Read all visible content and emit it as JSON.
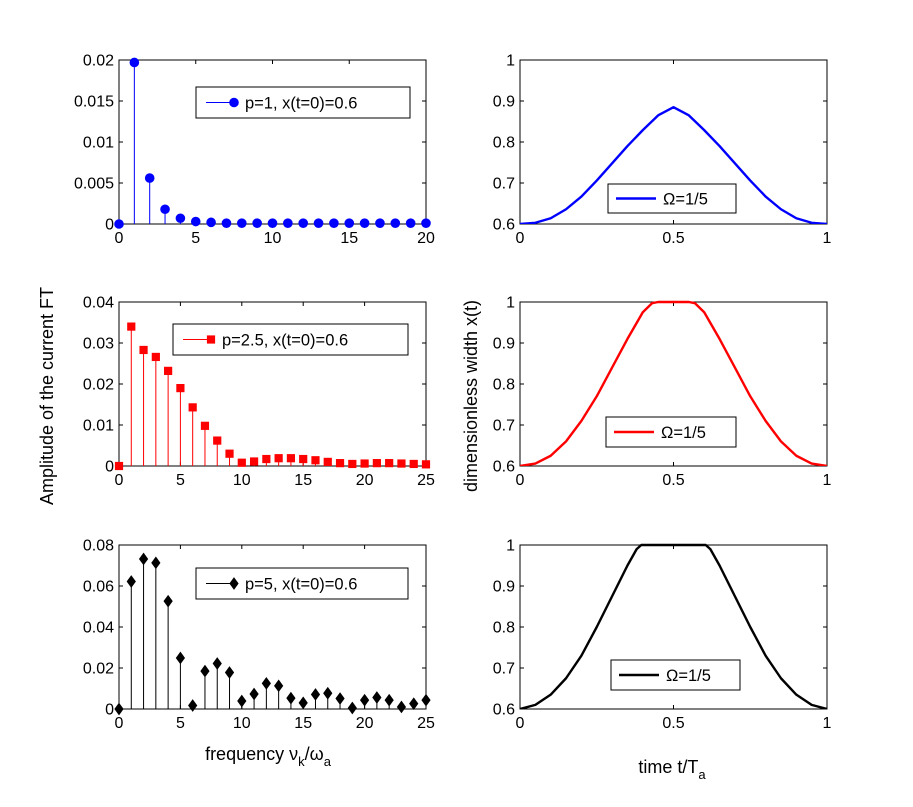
{
  "figure": {
    "left_ylabel": "Amplitude of the current FT",
    "right_ylabel": "dimensionless width x(t)",
    "left_xlabel_main": "frequency ν",
    "left_xlabel_sub1": "k",
    "left_xlabel_mid": "/ω",
    "left_xlabel_sub2": "a",
    "right_xlabel_main": "time t/T",
    "right_xlabel_sub": "a"
  },
  "colors": {
    "blue": "#0000ff",
    "red": "#ff0000",
    "black": "#000000"
  },
  "chart_data": [
    {
      "id": "stem1",
      "type": "scatter",
      "style": "stem",
      "marker": "circle",
      "color": "#0000ff",
      "legend": "p=1, x(t=0)=0.6",
      "xlim": [
        0,
        20
      ],
      "ylim": [
        0,
        0.02
      ],
      "xticks": [
        "0",
        "5",
        "10",
        "15",
        "20"
      ],
      "xtick_values": [
        0,
        5,
        10,
        15,
        20
      ],
      "yticks": [
        "0",
        "0.005",
        "0.01",
        "0.015",
        "0.02"
      ],
      "ytick_values": [
        0,
        0.005,
        0.01,
        0.015,
        0.02
      ],
      "x": [
        0,
        1,
        2,
        3,
        4,
        5,
        6,
        7,
        8,
        9,
        10,
        11,
        12,
        13,
        14,
        15,
        16,
        17,
        18,
        19,
        20
      ],
      "y": [
        0,
        0.0197,
        0.0056,
        0.0018,
        0.0007,
        0.0003,
        0.0002,
        0.0001,
        0.0001,
        0.0001,
        0.0001,
        0.0001,
        0.0001,
        0.0001,
        0.0001,
        0.0001,
        0.0001,
        0.0001,
        0.0001,
        0.0001,
        0.0001
      ]
    },
    {
      "id": "stem2",
      "type": "scatter",
      "style": "stem",
      "marker": "square",
      "color": "#ff0000",
      "legend": "p=2.5, x(t=0)=0.6",
      "xlim": [
        0,
        25
      ],
      "ylim": [
        0,
        0.04
      ],
      "xticks": [
        "0",
        "5",
        "10",
        "15",
        "20",
        "25"
      ],
      "xtick_values": [
        0,
        5,
        10,
        15,
        20,
        25
      ],
      "yticks": [
        "0",
        "0.01",
        "0.02",
        "0.03",
        "0.04"
      ],
      "ytick_values": [
        0,
        0.01,
        0.02,
        0.03,
        0.04
      ],
      "x": [
        0,
        1,
        2,
        3,
        4,
        5,
        6,
        7,
        8,
        9,
        10,
        11,
        12,
        13,
        14,
        15,
        16,
        17,
        18,
        19,
        20,
        21,
        22,
        23,
        24,
        25
      ],
      "y": [
        0,
        0.034,
        0.0283,
        0.0266,
        0.0232,
        0.019,
        0.0143,
        0.0098,
        0.0062,
        0.003,
        0.0008,
        0.0011,
        0.0017,
        0.0019,
        0.0019,
        0.0017,
        0.0014,
        0.001,
        0.0007,
        0.0005,
        0.0006,
        0.0007,
        0.0007,
        0.0006,
        0.0005,
        0.0004
      ]
    },
    {
      "id": "stem3",
      "type": "scatter",
      "style": "stem",
      "marker": "diamond",
      "color": "#000000",
      "legend": "p=5, x(t=0)=0.6",
      "xlim": [
        0,
        25
      ],
      "ylim": [
        0,
        0.08
      ],
      "xticks": [
        "0",
        "5",
        "10",
        "15",
        "20",
        "25"
      ],
      "xtick_values": [
        0,
        5,
        10,
        15,
        20,
        25
      ],
      "yticks": [
        "0",
        "0.02",
        "0.04",
        "0.06",
        "0.08"
      ],
      "ytick_values": [
        0,
        0.02,
        0.04,
        0.06,
        0.08
      ],
      "x": [
        0,
        1,
        2,
        3,
        4,
        5,
        6,
        7,
        8,
        9,
        10,
        11,
        12,
        13,
        14,
        15,
        16,
        17,
        18,
        19,
        20,
        21,
        22,
        23,
        24,
        25
      ],
      "y": [
        0,
        0.0622,
        0.0732,
        0.0713,
        0.0526,
        0.0249,
        0.0017,
        0.0185,
        0.0222,
        0.0178,
        0.0039,
        0.0073,
        0.0125,
        0.0113,
        0.0053,
        0.003,
        0.0071,
        0.0077,
        0.0051,
        0.0005,
        0.0043,
        0.0056,
        0.0043,
        0.001,
        0.0026,
        0.0043
      ]
    },
    {
      "id": "line1",
      "type": "line",
      "color": "#0000ff",
      "legend": "Ω=1/5",
      "xlim": [
        0,
        1
      ],
      "ylim": [
        0.6,
        1
      ],
      "xticks": [
        "0",
        "0.5",
        "1"
      ],
      "xtick_values": [
        0,
        0.5,
        1
      ],
      "yticks": [
        "0.6",
        "0.7",
        "0.8",
        "0.9",
        "1"
      ],
      "ytick_values": [
        0.6,
        0.7,
        0.8,
        0.9,
        1
      ],
      "x": [
        0,
        0.05,
        0.1,
        0.15,
        0.2,
        0.25,
        0.3,
        0.35,
        0.4,
        0.45,
        0.5,
        0.55,
        0.6,
        0.65,
        0.7,
        0.75,
        0.8,
        0.85,
        0.9,
        0.95,
        1
      ],
      "y": [
        0.6,
        0.603,
        0.614,
        0.636,
        0.667,
        0.706,
        0.748,
        0.79,
        0.829,
        0.865,
        0.885,
        0.865,
        0.829,
        0.79,
        0.748,
        0.706,
        0.667,
        0.636,
        0.614,
        0.603,
        0.6
      ]
    },
    {
      "id": "line2",
      "type": "line",
      "color": "#ff0000",
      "legend": "Ω=1/5",
      "xlim": [
        0,
        1
      ],
      "ylim": [
        0.6,
        1
      ],
      "xticks": [
        "0",
        "0.5",
        "1"
      ],
      "xtick_values": [
        0,
        0.5,
        1
      ],
      "yticks": [
        "0.6",
        "0.7",
        "0.8",
        "0.9",
        "1"
      ],
      "ytick_values": [
        0.6,
        0.7,
        0.8,
        0.9,
        1
      ],
      "x": [
        0,
        0.05,
        0.1,
        0.15,
        0.2,
        0.25,
        0.3,
        0.35,
        0.4,
        0.43,
        0.45,
        0.5,
        0.55,
        0.57,
        0.6,
        0.65,
        0.7,
        0.75,
        0.8,
        0.85,
        0.9,
        0.95,
        1
      ],
      "y": [
        0.6,
        0.606,
        0.625,
        0.66,
        0.71,
        0.77,
        0.84,
        0.91,
        0.975,
        0.997,
        1.0,
        1.0,
        1.0,
        0.997,
        0.975,
        0.91,
        0.84,
        0.77,
        0.71,
        0.66,
        0.625,
        0.606,
        0.6
      ]
    },
    {
      "id": "line3",
      "type": "line",
      "color": "#000000",
      "legend": "Ω=1/5",
      "xlim": [
        0,
        1
      ],
      "ylim": [
        0.6,
        1
      ],
      "xticks": [
        "0",
        "0.5",
        "1"
      ],
      "xtick_values": [
        0,
        0.5,
        1
      ],
      "yticks": [
        "0.6",
        "0.7",
        "0.8",
        "0.9",
        "1"
      ],
      "ytick_values": [
        0.6,
        0.7,
        0.8,
        0.9,
        1
      ],
      "x": [
        0,
        0.05,
        0.1,
        0.15,
        0.2,
        0.25,
        0.3,
        0.35,
        0.38,
        0.395,
        0.42,
        0.5,
        0.58,
        0.605,
        0.62,
        0.65,
        0.7,
        0.75,
        0.8,
        0.85,
        0.9,
        0.95,
        1
      ],
      "y": [
        0.6,
        0.61,
        0.635,
        0.675,
        0.73,
        0.8,
        0.875,
        0.95,
        0.99,
        1.0,
        1.0,
        1.0,
        1.0,
        1.0,
        0.99,
        0.95,
        0.875,
        0.8,
        0.73,
        0.675,
        0.635,
        0.61,
        0.6
      ]
    }
  ]
}
